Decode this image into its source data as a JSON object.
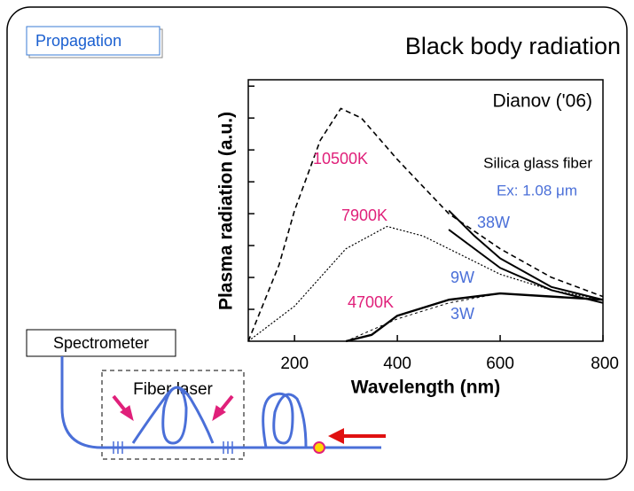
{
  "header": {
    "tag": "Propagation",
    "title": "Black body radiation"
  },
  "diagram": {
    "spectrometer": "Spectrometer",
    "fiber_laser": "Fiber laser"
  },
  "chart_data": {
    "type": "line",
    "xlabel": "Wavelength (nm)",
    "ylabel": "Plasma radiation (a.u.)",
    "annotations": [
      "Dianov ('06)",
      "Silica glass fiber",
      "Ex: 1.08 μm"
    ],
    "xlim": [
      110,
      800
    ],
    "xticks": [
      200,
      400,
      600,
      800
    ],
    "ylim": [
      0,
      8.2
    ],
    "yticks": [
      1,
      2,
      3,
      4,
      5,
      6,
      7,
      8
    ],
    "series": [
      {
        "name": "10500K",
        "color": "#e0207a",
        "line_color": "#000000",
        "dash": "6,4",
        "width": 1.6,
        "x": [
          110,
          170,
          200,
          250,
          290,
          330,
          400,
          500,
          600,
          700,
          800
        ],
        "values": [
          0,
          2.4,
          4.1,
          6.3,
          7.3,
          7.0,
          5.7,
          4.0,
          2.9,
          2.0,
          1.4
        ]
      },
      {
        "name": "7900K",
        "color": "#e0207a",
        "line_color": "#000000",
        "dash": "2,2",
        "width": 1.2,
        "x": [
          110,
          200,
          300,
          380,
          450,
          500,
          600,
          700,
          800
        ],
        "values": [
          0,
          1.1,
          2.9,
          3.6,
          3.3,
          2.9,
          2.1,
          1.6,
          1.3
        ]
      },
      {
        "name": "4700K",
        "color": "#e0207a",
        "line_color": "#000000",
        "dash": "3,3",
        "width": 1,
        "x": [
          300,
          400,
          500,
          600,
          700,
          800
        ],
        "values": [
          0,
          0.7,
          1.2,
          1.5,
          1.4,
          1.3
        ]
      },
      {
        "name": "38W",
        "color": "#4a6fd8",
        "line_color": "#000000",
        "dash": "none",
        "width": 2,
        "x": [
          500,
          550,
          600,
          700,
          800
        ],
        "values": [
          4.1,
          3.3,
          2.6,
          1.7,
          1.3
        ]
      },
      {
        "name": "9W",
        "color": "#4a6fd8",
        "line_color": "#000000",
        "dash": "none",
        "width": 2,
        "x": [
          500,
          600,
          700,
          800
        ],
        "values": [
          3.5,
          2.3,
          1.6,
          1.2
        ]
      },
      {
        "name": "3W",
        "color": "#4a6fd8",
        "line_color": "#000000",
        "dash": "none",
        "width": 2.4,
        "x": [
          300,
          350,
          400,
          500,
          600,
          700,
          800
        ],
        "values": [
          0,
          0.2,
          0.8,
          1.3,
          1.5,
          1.4,
          1.3
        ]
      }
    ]
  }
}
